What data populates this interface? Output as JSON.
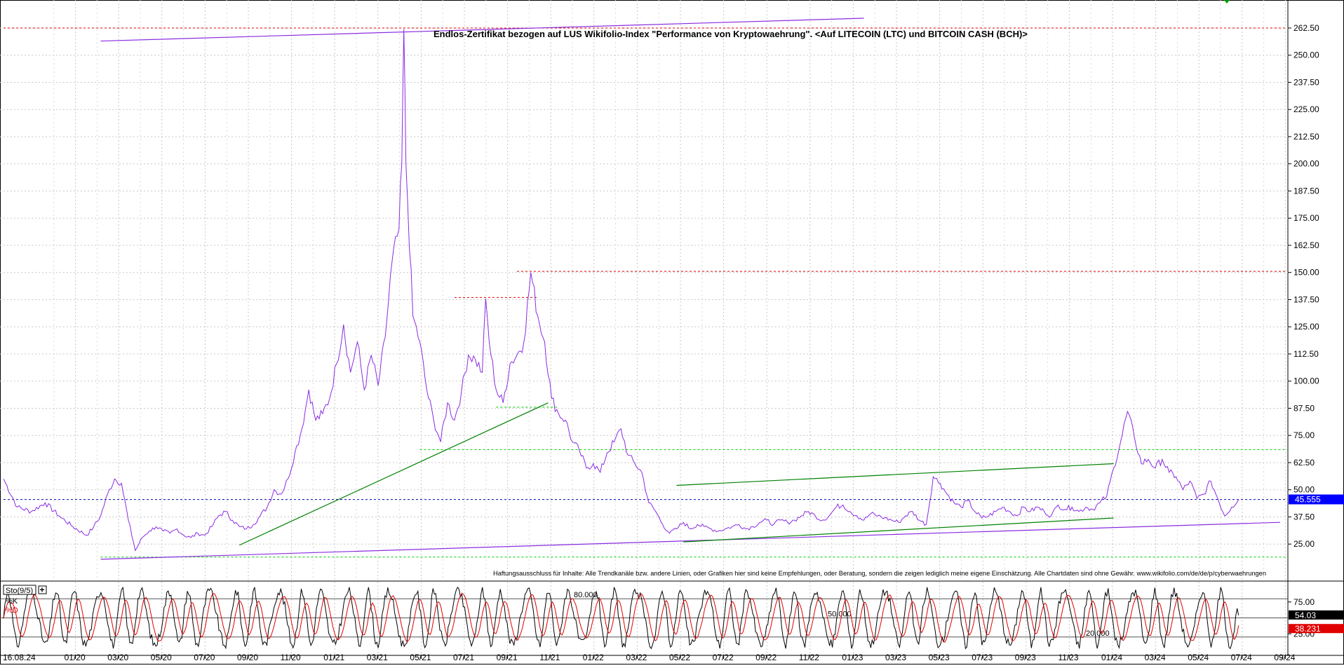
{
  "chart_data": [
    {
      "type": "line",
      "title": "Endlos-Zertifikat bezogen auf LUS Wikifolio-Index \"Performance von Kryptowaehrung\". <Auf LITECOIN (LTC) und BITCOIN CASH (BCH)>",
      "disclaimer": "Haftungsausschluss für Inhalte: Alle Trendkanäle bzw. andere Linien, oder Grafiken hier sind keine Empfehlungen, oder Beratung, sondern die zeigen lediglich meine eigene Einschätzung. Alle Chartdaten sind ohne Gewähr.  www.wikifolio.com/de/de/p/cyberwaehrungen",
      "x_labels": [
        "16.08.24",
        "01/20",
        "03/20",
        "05/20",
        "07/20",
        "09/20",
        "11/20",
        "01/21",
        "03/21",
        "05/21",
        "07/21",
        "09/21",
        "11/21",
        "01/22",
        "03/22",
        "05/22",
        "07/22",
        "09/22",
        "11/22",
        "01/23",
        "03/23",
        "05/23",
        "07/23",
        "09/23",
        "11/23",
        "01/24",
        "03/24",
        "05/24",
        "07/24",
        "09/24"
      ],
      "y_ticks": [
        "262.50",
        "250.00",
        "237.50",
        "225.00",
        "212.50",
        "200.00",
        "187.50",
        "175.00",
        "162.50",
        "150.00",
        "137.50",
        "125.00",
        "112.50",
        "100.00",
        "87.50",
        "75.00",
        "62.50",
        "50.00",
        "37.50",
        "25.00"
      ],
      "ylim": [
        17,
        267
      ],
      "last_value": "45.555",
      "last_value_color": "#0000ff",
      "price_color": "#8a2be2",
      "series": [
        {
          "values": [
            [
              0,
              55
            ],
            [
              2,
              42
            ],
            [
              4,
              40
            ],
            [
              6,
              44
            ],
            [
              8,
              38
            ],
            [
              10,
              33
            ],
            [
              12,
              29
            ],
            [
              13,
              33
            ],
            [
              14,
              38
            ],
            [
              15,
              48
            ],
            [
              16,
              55
            ],
            [
              17,
              53
            ],
            [
              18,
              36
            ],
            [
              19,
              22
            ],
            [
              20,
              28
            ],
            [
              21,
              31
            ],
            [
              22,
              33
            ],
            [
              23,
              31
            ],
            [
              24,
              30
            ],
            [
              25,
              32
            ],
            [
              26,
              29
            ],
            [
              27,
              28
            ],
            [
              28,
              30
            ],
            [
              29,
              29
            ],
            [
              30,
              33
            ],
            [
              31,
              38
            ],
            [
              32,
              40
            ],
            [
              33,
              36
            ],
            [
              34,
              33
            ],
            [
              35,
              32
            ],
            [
              36,
              34
            ],
            [
              37,
              38
            ],
            [
              38,
              42
            ],
            [
              39,
              50
            ],
            [
              40,
              48
            ],
            [
              41,
              55
            ],
            [
              42,
              67
            ],
            [
              43,
              78
            ],
            [
              44,
              96
            ],
            [
              45,
              82
            ],
            [
              46,
              85
            ],
            [
              47,
              92
            ],
            [
              48,
              108
            ],
            [
              49,
              126
            ],
            [
              50,
              104
            ],
            [
              51,
              118
            ],
            [
              52,
              96
            ],
            [
              53,
              112
            ],
            [
              54,
              98
            ],
            [
              55,
              120
            ],
            [
              56,
              155
            ],
            [
              57,
              170
            ],
            [
              57.4,
              200
            ],
            [
              57.7,
              262
            ],
            [
              58,
              200
            ],
            [
              59,
              130
            ],
            [
              60,
              118
            ],
            [
              61,
              96
            ],
            [
              62,
              82
            ],
            [
              63,
              72
            ],
            [
              64,
              90
            ],
            [
              65,
              82
            ],
            [
              66,
              95
            ],
            [
              67,
              112
            ],
            [
              68,
              110
            ],
            [
              69,
              104
            ],
            [
              69.5,
              138
            ],
            [
              70,
              118
            ],
            [
              71,
              96
            ],
            [
              72,
              90
            ],
            [
              73,
              108
            ],
            [
              74,
              112
            ],
            [
              75,
              118
            ],
            [
              76,
              150
            ],
            [
              77,
              130
            ],
            [
              78,
              118
            ],
            [
              79,
              92
            ],
            [
              80,
              85
            ],
            [
              81,
              82
            ],
            [
              82,
              72
            ],
            [
              83,
              68
            ],
            [
              84,
              60
            ],
            [
              85,
              62
            ],
            [
              86,
              58
            ],
            [
              87,
              67
            ],
            [
              88,
              72
            ],
            [
              89,
              78
            ],
            [
              90,
              66
            ],
            [
              91,
              62
            ],
            [
              92,
              58
            ],
            [
              93,
              44
            ],
            [
              94,
              40
            ],
            [
              95,
              34
            ],
            [
              96,
              30
            ],
            [
              97,
              32
            ],
            [
              98,
              35
            ],
            [
              99,
              32
            ],
            [
              100,
              34
            ],
            [
              101,
              33
            ],
            [
              102,
              32
            ],
            [
              103,
              31
            ],
            [
              104,
              32
            ],
            [
              105,
              33
            ],
            [
              106,
              34
            ],
            [
              107,
              32
            ],
            [
              108,
              33
            ],
            [
              109,
              35
            ],
            [
              110,
              36
            ],
            [
              111,
              34
            ],
            [
              112,
              36
            ],
            [
              113,
              35
            ],
            [
              114,
              36
            ],
            [
              115,
              38
            ],
            [
              116,
              40
            ],
            [
              117,
              38
            ],
            [
              118,
              36
            ],
            [
              119,
              38
            ],
            [
              120,
              42
            ],
            [
              121,
              43
            ],
            [
              122,
              40
            ],
            [
              123,
              38
            ],
            [
              124,
              36
            ],
            [
              125,
              39
            ],
            [
              126,
              38
            ],
            [
              127,
              37
            ],
            [
              128,
              36
            ],
            [
              129,
              35
            ],
            [
              130,
              38
            ],
            [
              131,
              40
            ],
            [
              132,
              36
            ],
            [
              133,
              34
            ],
            [
              134,
              56
            ],
            [
              135,
              53
            ],
            [
              136,
              48
            ],
            [
              137,
              44
            ],
            [
              138,
              42
            ],
            [
              139,
              45
            ],
            [
              140,
              40
            ],
            [
              141,
              37
            ],
            [
              142,
              38
            ],
            [
              143,
              40
            ],
            [
              144,
              42
            ],
            [
              145,
              40
            ],
            [
              146,
              38
            ],
            [
              147,
              42
            ],
            [
              148,
              40
            ],
            [
              149,
              42
            ],
            [
              150,
              40
            ],
            [
              151,
              38
            ],
            [
              152,
              43
            ],
            [
              153,
              41
            ],
            [
              154,
              42
            ],
            [
              155,
              40
            ],
            [
              156,
              42
            ],
            [
              157,
              41
            ],
            [
              158,
              44
            ],
            [
              159,
              47
            ],
            [
              160,
              60
            ],
            [
              161,
              72
            ],
            [
              162,
              86
            ],
            [
              163,
              74
            ],
            [
              164,
              62
            ],
            [
              165,
              64
            ],
            [
              166,
              60
            ],
            [
              167,
              64
            ],
            [
              168,
              58
            ],
            [
              169,
              56
            ],
            [
              170,
              50
            ],
            [
              171,
              54
            ],
            [
              172,
              46
            ],
            [
              173,
              48
            ],
            [
              174,
              54
            ],
            [
              175,
              46
            ],
            [
              176,
              38
            ],
            [
              177,
              42
            ],
            [
              178,
              45.5
            ]
          ]
        }
      ],
      "trendlines": [
        {
          "color": "#8a2be2",
          "from": [
            14,
            256.5
          ],
          "to": [
            124,
            267
          ]
        },
        {
          "color": "#8a2be2",
          "from": [
            14,
            18
          ],
          "to": [
            184,
            35
          ]
        },
        {
          "color": "#008000",
          "from": [
            34,
            24.5
          ],
          "to": [
            78.5,
            90
          ]
        },
        {
          "color": "#008000",
          "from": [
            97,
            52
          ],
          "to": [
            160,
            62
          ]
        },
        {
          "color": "#008000",
          "from": [
            98,
            26
          ],
          "to": [
            160,
            37
          ]
        }
      ],
      "hlines": [
        {
          "y": 262.5,
          "color": "#e00000",
          "from_x": 0,
          "to_x": 184
        },
        {
          "y": 150.5,
          "color": "#e00000",
          "from_x": 74,
          "to_x": 184
        },
        {
          "y": 138.5,
          "color": "#e00000",
          "from_x": 65,
          "to_x": 76
        },
        {
          "y": 88,
          "color": "#00cc00",
          "from_x": 71,
          "to_x": 79
        },
        {
          "y": 68.5,
          "color": "#00cc00",
          "from_x": 60,
          "to_x": 184
        },
        {
          "y": 45.5,
          "color": "#0000aa",
          "from_x": 0,
          "to_x": 184
        },
        {
          "y": 19,
          "color": "#00cc00",
          "from_x": 14,
          "to_x": 184
        }
      ]
    },
    {
      "type": "line",
      "indicator_label": "Sto(9/5)",
      "legend": [
        "%K",
        "%D"
      ],
      "legend_colors": [
        "#000000",
        "#e00000"
      ],
      "levels": [
        "80.000",
        "50.000",
        "20.000"
      ],
      "y_ticks": [
        "75.00",
        "25.00"
      ],
      "ylim": [
        0,
        100
      ],
      "last_k": "54.03",
      "last_d": "38.231",
      "cycles": 55,
      "x_end": 178
    }
  ]
}
